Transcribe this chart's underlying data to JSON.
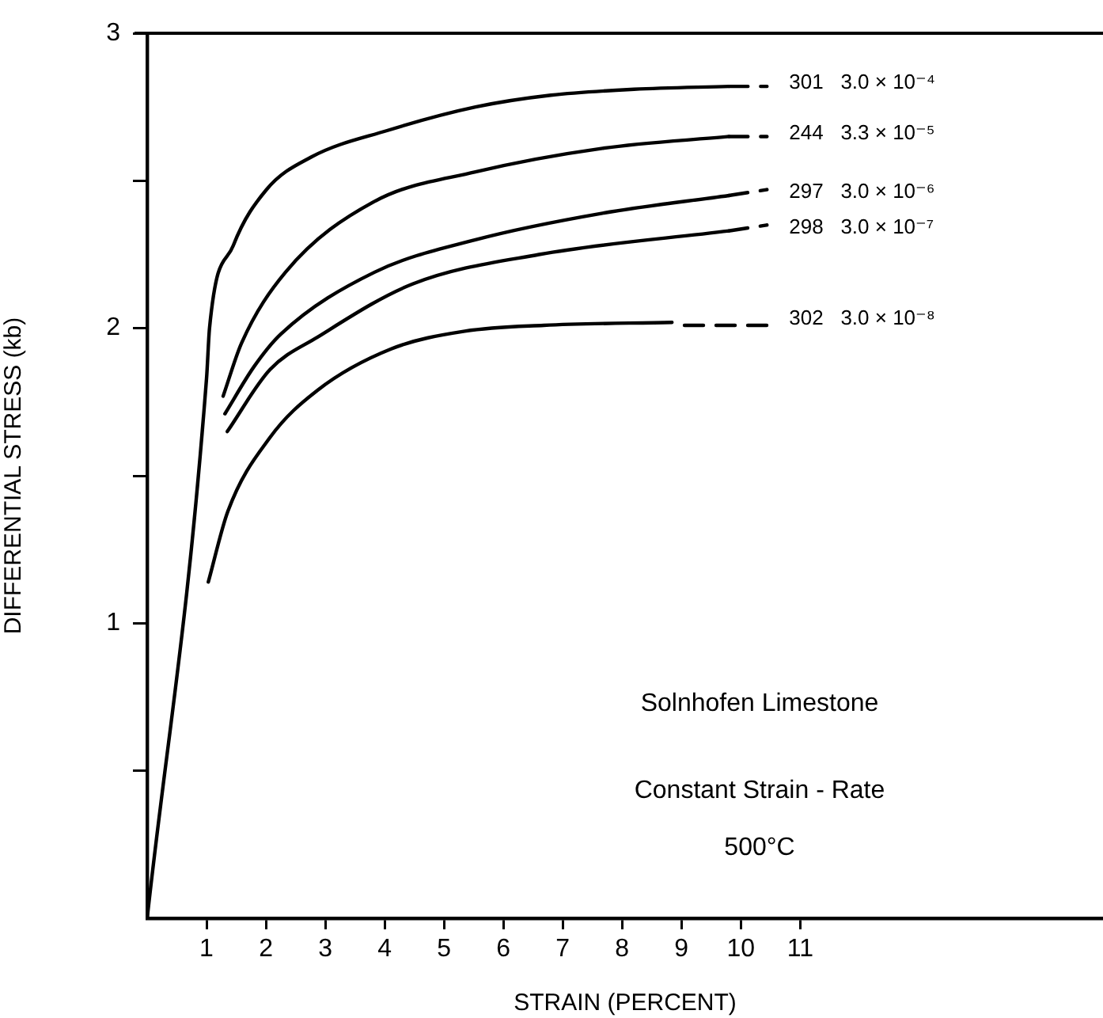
{
  "chart_data": {
    "type": "line",
    "xlabel": "STRAIN (PERCENT)",
    "ylabel": "DIFFERENTIAL STRESS (kb)",
    "xlim": [
      0,
      16.1
    ],
    "xticks": [
      1,
      2,
      3,
      4,
      5,
      6,
      7,
      8,
      9,
      10,
      11
    ],
    "ylim": [
      0,
      3
    ],
    "yticks": [
      {
        "value": 0.5,
        "label": null
      },
      1,
      {
        "value": 1.5,
        "label": null
      },
      2,
      {
        "value": 2.5,
        "label": null
      },
      3
    ],
    "grid": false,
    "legend": false,
    "marker": "none",
    "series": [
      {
        "name": "301   3.0 × 10⁻⁴",
        "color": "#000000",
        "x": [
          0,
          1.0,
          1.05,
          1.45,
          2.01,
          2.76,
          4.04,
          5.53,
          6.8,
          8.2,
          9.8
        ],
        "values": [
          0,
          1.83,
          2.0,
          2.28,
          2.47,
          2.58,
          2.67,
          2.75,
          2.79,
          2.81,
          2.82
        ]
      },
      {
        "color": "#000000",
        "line_style": "dashed",
        "x": [
          9.8,
          10.44
        ],
        "values": [
          2.82,
          2.82
        ]
      },
      {
        "name": "244   3.3 × 10⁻⁵",
        "color": "#000000",
        "x": [
          1.28,
          1.59,
          2.33,
          3.83,
          5.53,
          7.67,
          9.8
        ],
        "values": [
          1.77,
          1.95,
          2.19,
          2.43,
          2.53,
          2.61,
          2.65
        ]
      },
      {
        "color": "#000000",
        "line_style": "dashed",
        "x": [
          9.8,
          10.44
        ],
        "values": [
          2.65,
          2.65
        ]
      },
      {
        "name": "297   3.0 × 10⁻⁶",
        "color": "#000000",
        "x": [
          1.31,
          1.8,
          2.25,
          3.83,
          5.53,
          7.67,
          9.8
        ],
        "values": [
          1.71,
          1.87,
          1.98,
          2.19,
          2.3,
          2.39,
          2.45
        ]
      },
      {
        "color": "#000000",
        "line_style": "dashed",
        "x": [
          9.8,
          10.44
        ],
        "values": [
          2.45,
          2.47
        ]
      },
      {
        "name": "298   3.0 × 10⁻⁷",
        "color": "#000000",
        "x": [
          1.35,
          2.07,
          2.87,
          4.47,
          6.6,
          9.8
        ],
        "values": [
          1.65,
          1.86,
          1.97,
          2.15,
          2.25,
          2.33
        ]
      },
      {
        "color": "#000000",
        "line_style": "dashed",
        "x": [
          9.8,
          10.44
        ],
        "values": [
          2.33,
          2.35
        ]
      },
      {
        "name": "302   3.0 × 10⁻⁸",
        "color": "#000000",
        "x": [
          1.03,
          1.36,
          2.07,
          2.87,
          4.11,
          5.35,
          6.68,
          8.84
        ],
        "values": [
          1.14,
          1.38,
          1.63,
          1.79,
          1.93,
          1.99,
          2.01,
          2.02
        ]
      },
      {
        "color": "#000000",
        "line_style": "dashed",
        "x": [
          9.05,
          10.44
        ],
        "values": [
          2.01,
          2.01
        ]
      }
    ],
    "annotations": [
      "Solnhofen Limestone",
      "Constant Strain - Rate",
      "500°C"
    ]
  }
}
